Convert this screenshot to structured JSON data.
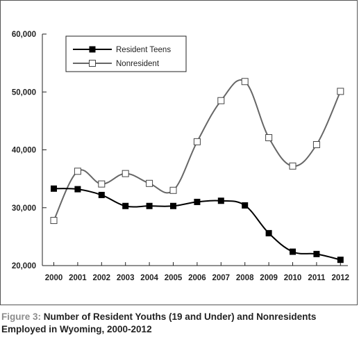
{
  "chart_data": {
    "type": "line",
    "x": [
      "2000",
      "2001",
      "2002",
      "2003",
      "2004",
      "2005",
      "2006",
      "2007",
      "2008",
      "2009",
      "2010",
      "2011",
      "2012"
    ],
    "series": [
      {
        "name": "Resident Teens",
        "marker": "filled-square",
        "color": "#000000",
        "values": [
          33300,
          33200,
          32200,
          30300,
          30300,
          30300,
          31000,
          31200,
          30400,
          25600,
          22400,
          22000,
          21000
        ]
      },
      {
        "name": "Nonresident",
        "marker": "open-square",
        "color": "#666666",
        "values": [
          27800,
          36300,
          34100,
          35900,
          34200,
          33000,
          41400,
          48500,
          51800,
          42100,
          37200,
          40900,
          50100
        ]
      }
    ],
    "yticks": [
      "20,000",
      "30,000",
      "40,000",
      "50,000",
      "60,000"
    ],
    "ytick_values": [
      20000,
      30000,
      40000,
      50000,
      60000
    ],
    "ylim": [
      20000,
      60000
    ],
    "legend": "top-left",
    "grid": false
  },
  "caption": {
    "label": "Figure 3:",
    "text": "Number of Resident Youths (19 and Under) and Nonresidents Employed in Wyoming, 2000-2012"
  }
}
